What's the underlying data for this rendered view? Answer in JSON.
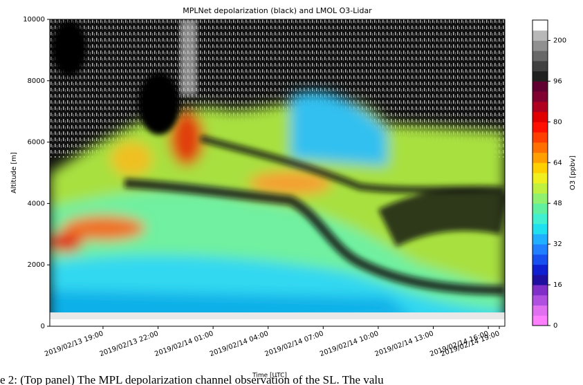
{
  "chart_data": {
    "type": "heatmap",
    "title": "MPLNet depolarization (black) and LMOL O3-Lidar",
    "xlabel": "Time [UTC]",
    "ylabel": "Altitude [m]",
    "xlim": [
      16.1,
      40.9
    ],
    "xticks": [
      {
        "value": 19,
        "label": "2019/02/13 19:00"
      },
      {
        "value": 22,
        "label": "2019/02/13 22:00"
      },
      {
        "value": 25,
        "label": "2019/02/14 01:00"
      },
      {
        "value": 28,
        "label": "2019/02/14 04:00"
      },
      {
        "value": 31,
        "label": "2019/02/14 07:00"
      },
      {
        "value": 34,
        "label": "2019/02/14 10:00"
      },
      {
        "value": 37,
        "label": "2019/02/14 13:00"
      },
      {
        "value": 40,
        "label": "2019/02/14 16:00"
      },
      {
        "value": 43,
        "label": "2019/02/14 19:00"
      }
    ],
    "ylim": [
      0,
      10000
    ],
    "yticks": [
      0,
      2000,
      4000,
      6000,
      8000,
      10000
    ],
    "colorbar": {
      "label": "O3 [ppbv]",
      "ticks": [
        0,
        16,
        32,
        48,
        64,
        80,
        96,
        200
      ],
      "colors": [
        "#ff80ff",
        "#e070f0",
        "#b050e0",
        "#8030c8",
        "#2010a0",
        "#1020d0",
        "#1850f0",
        "#2080ff",
        "#20b0ff",
        "#20e0f0",
        "#40f0d0",
        "#60f0a0",
        "#90f070",
        "#c0f040",
        "#f0f020",
        "#ffd000",
        "#ffa000",
        "#ff7000",
        "#ff4000",
        "#ff1000",
        "#e00000",
        "#b00020",
        "#800030",
        "#600030",
        "#202020",
        "#404040",
        "#686868",
        "#909090",
        "#b8b8b8",
        "#ffffff"
      ]
    }
  },
  "caption": "e 2: (Top panel) The MPL depolarization channel observation of the SL. The valu"
}
